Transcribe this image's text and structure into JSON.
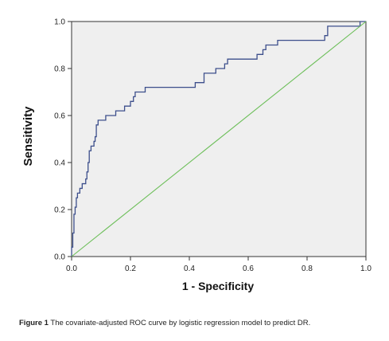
{
  "chart_data": {
    "type": "line",
    "title": "",
    "xlabel": "1 - Specificity",
    "ylabel": "Sensitivity",
    "xlim": [
      0.0,
      1.0
    ],
    "ylim": [
      0.0,
      1.0
    ],
    "x_ticks": [
      "0.0",
      "0.2",
      "0.4",
      "0.6",
      "0.8",
      "1.0"
    ],
    "y_ticks": [
      "0.0",
      "0.2",
      "0.4",
      "0.6",
      "0.8",
      "1.0"
    ],
    "grid": false,
    "legend": "none",
    "background_color": "#efefef",
    "series": [
      {
        "color": "#3d4f8c",
        "style": "step",
        "points": [
          [
            0.0,
            0.0
          ],
          [
            0.0,
            0.04
          ],
          [
            0.004,
            0.04
          ],
          [
            0.004,
            0.1
          ],
          [
            0.008,
            0.1
          ],
          [
            0.008,
            0.18
          ],
          [
            0.012,
            0.18
          ],
          [
            0.012,
            0.21
          ],
          [
            0.016,
            0.21
          ],
          [
            0.016,
            0.25
          ],
          [
            0.02,
            0.25
          ],
          [
            0.02,
            0.27
          ],
          [
            0.028,
            0.27
          ],
          [
            0.028,
            0.29
          ],
          [
            0.036,
            0.29
          ],
          [
            0.036,
            0.31
          ],
          [
            0.048,
            0.31
          ],
          [
            0.048,
            0.33
          ],
          [
            0.052,
            0.33
          ],
          [
            0.052,
            0.36
          ],
          [
            0.056,
            0.36
          ],
          [
            0.056,
            0.4
          ],
          [
            0.06,
            0.4
          ],
          [
            0.06,
            0.45
          ],
          [
            0.066,
            0.45
          ],
          [
            0.066,
            0.47
          ],
          [
            0.076,
            0.47
          ],
          [
            0.076,
            0.49
          ],
          [
            0.08,
            0.49
          ],
          [
            0.08,
            0.51
          ],
          [
            0.084,
            0.51
          ],
          [
            0.084,
            0.56
          ],
          [
            0.09,
            0.56
          ],
          [
            0.09,
            0.58
          ],
          [
            0.116,
            0.58
          ],
          [
            0.116,
            0.6
          ],
          [
            0.15,
            0.6
          ],
          [
            0.15,
            0.62
          ],
          [
            0.18,
            0.62
          ],
          [
            0.18,
            0.64
          ],
          [
            0.2,
            0.64
          ],
          [
            0.2,
            0.66
          ],
          [
            0.21,
            0.66
          ],
          [
            0.21,
            0.68
          ],
          [
            0.216,
            0.68
          ],
          [
            0.216,
            0.7
          ],
          [
            0.25,
            0.7
          ],
          [
            0.25,
            0.72
          ],
          [
            0.42,
            0.72
          ],
          [
            0.42,
            0.74
          ],
          [
            0.45,
            0.74
          ],
          [
            0.45,
            0.78
          ],
          [
            0.49,
            0.78
          ],
          [
            0.49,
            0.8
          ],
          [
            0.52,
            0.8
          ],
          [
            0.52,
            0.82
          ],
          [
            0.53,
            0.82
          ],
          [
            0.53,
            0.84
          ],
          [
            0.63,
            0.84
          ],
          [
            0.63,
            0.86
          ],
          [
            0.65,
            0.86
          ],
          [
            0.65,
            0.88
          ],
          [
            0.66,
            0.88
          ],
          [
            0.66,
            0.9
          ],
          [
            0.7,
            0.9
          ],
          [
            0.7,
            0.92
          ],
          [
            0.86,
            0.92
          ],
          [
            0.86,
            0.94
          ],
          [
            0.87,
            0.94
          ],
          [
            0.87,
            0.98
          ],
          [
            0.98,
            0.98
          ],
          [
            0.98,
            1.0
          ],
          [
            1.0,
            1.0
          ]
        ]
      },
      {
        "color": "#6dbf5a",
        "style": "line",
        "points": [
          [
            0.0,
            0.0
          ],
          [
            1.0,
            1.0
          ]
        ]
      }
    ]
  },
  "caption": {
    "lead": "Figure 1",
    "text": " The covariate-adjusted ROC curve by logistic regression model to predict DR."
  }
}
